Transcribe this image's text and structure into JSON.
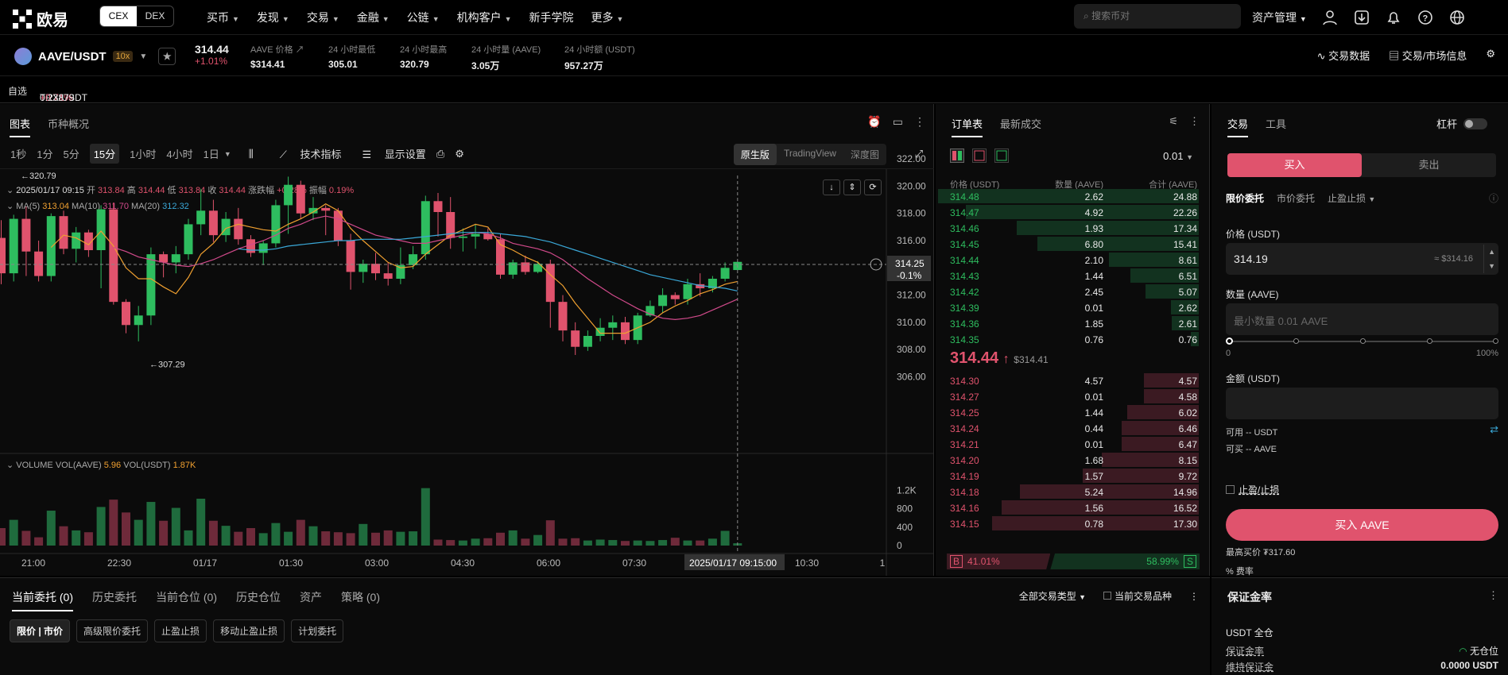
{
  "nav": {
    "logo_text": "欧易",
    "cex": "CEX",
    "dex": "DEX",
    "menu": [
      "买币",
      "发现",
      "交易",
      "金融",
      "公链",
      "机构客户",
      "新手学院",
      "更多"
    ],
    "search_placeholder": "搜索币对",
    "asset_mgmt": "资产管理"
  },
  "ticker": {
    "pair": "AAVE/USDT",
    "leverage": "10x",
    "price": "314.44",
    "change": "+1.01%",
    "stats": [
      {
        "label": "AAVE 价格",
        "value": "$314.41"
      },
      {
        "label": "24 小时最低",
        "value": "305.01"
      },
      {
        "label": "24 小时最高",
        "value": "320.79"
      },
      {
        "label": "24 小时量 (AAVE)",
        "value": "3.05万"
      },
      {
        "label": "24 小时额 (USDT)",
        "value": "957.27万"
      }
    ],
    "trade_data": "交易数据",
    "market_info": "交易/市场信息"
  },
  "favbar": {
    "label": "自选",
    "item": "TRX/USDT 10x",
    "item_change": "+0.71%",
    "item_price": "0.23879"
  },
  "chart_panel": {
    "tabs": [
      "图表",
      "币种概况"
    ],
    "timeframes": [
      "1秒",
      "1分",
      "5分",
      "15分",
      "1小时",
      "4小时",
      "1日"
    ],
    "active_tf": "15分",
    "indicators": "技术指标",
    "display": "显示设置",
    "views": [
      "原生版",
      "TradingView",
      "深度图"
    ],
    "ohlc_line": {
      "time": "2025/01/17 09:15",
      "open_l": "开",
      "open": "313.84",
      "high_l": "高",
      "high": "314.44",
      "low_l": "低",
      "low": "313.84",
      "close_l": "收",
      "close": "314.44",
      "chg_l": "涨跌幅",
      "chg": "+0.28%",
      "amp_l": "振幅",
      "amp": "0.19%"
    },
    "ma_line": {
      "ma5_l": "MA(5)",
      "ma5": "313.04",
      "ma10_l": "MA(10)",
      "ma10": "311.70",
      "ma20_l": "MA(20)",
      "ma20": "312.32"
    },
    "high_marker": "←320.79",
    "low_marker": "←307.29",
    "last_price": "314.25",
    "last_change": "-0.1%",
    "vol_line": {
      "label": "VOLUME",
      "v1_l": "VOL(AAVE)",
      "v1": "5.96",
      "v2_l": "VOL(USDT)",
      "v2": "1.87K"
    },
    "time_axis": [
      "21:00",
      "22:30",
      "01/17",
      "01:30",
      "03:00",
      "04:30",
      "06:00",
      "07:30",
      "2025/01/17 09:15:00",
      "10:30",
      "1"
    ],
    "crosshair_time": "2025/01/17 09:15:00",
    "price_axis": [
      "322.00",
      "320.00",
      "318.00",
      "316.00",
      "314.00",
      "312.00",
      "310.00",
      "308.00",
      "306.00"
    ],
    "vol_axis": [
      "1.2K",
      "800",
      "400",
      "0"
    ]
  },
  "chart_data": {
    "type": "candlestick",
    "ylim": [
      305.5,
      323
    ],
    "candles": [
      [
        316.2,
        317.5,
        312.8,
        313.6
      ],
      [
        313.6,
        317.9,
        313.0,
        317.6
      ],
      [
        317.6,
        318.5,
        313.4,
        315.2
      ],
      [
        315.2,
        316.0,
        313.0,
        313.4
      ],
      [
        313.4,
        318.0,
        313.0,
        317.8
      ],
      [
        317.8,
        318.2,
        315.0,
        315.4
      ],
      [
        315.4,
        317.0,
        314.4,
        316.6
      ],
      [
        316.6,
        316.8,
        314.8,
        315.3
      ],
      [
        315.3,
        318.6,
        312.5,
        318.3
      ],
      [
        318.3,
        318.8,
        311.3,
        311.5
      ],
      [
        311.5,
        311.7,
        309.2,
        309.8
      ],
      [
        309.8,
        311.2,
        308.6,
        310.5
      ],
      [
        310.5,
        315.5,
        309.8,
        315.0
      ],
      [
        315.0,
        315.2,
        313.3,
        314.4
      ],
      [
        314.4,
        315.6,
        313.6,
        315.0
      ],
      [
        315.0,
        317.6,
        314.6,
        317.2
      ],
      [
        317.2,
        319.8,
        316.4,
        318.2
      ],
      [
        318.2,
        319.0,
        315.9,
        316.4
      ],
      [
        316.4,
        318.1,
        315.9,
        317.6
      ],
      [
        317.6,
        318.4,
        315.7,
        316.1
      ],
      [
        316.1,
        316.4,
        314.8,
        315.1
      ],
      [
        315.1,
        316.0,
        314.2,
        315.8
      ],
      [
        315.8,
        319.0,
        315.5,
        318.6
      ],
      [
        318.6,
        320.7,
        316.5,
        320.1
      ],
      [
        320.1,
        320.4,
        317.6,
        318.0
      ],
      [
        318.0,
        319.2,
        317.5,
        318.4
      ],
      [
        318.4,
        318.6,
        316.4,
        318.2
      ],
      [
        318.2,
        318.4,
        315.6,
        316.0
      ],
      [
        316.0,
        316.5,
        312.4,
        313.7
      ],
      [
        313.7,
        314.6,
        312.9,
        314.3
      ],
      [
        314.3,
        315.1,
        313.1,
        313.6
      ],
      [
        313.6,
        314.4,
        312.7,
        313.2
      ],
      [
        313.2,
        315.5,
        312.8,
        314.2
      ],
      [
        314.2,
        315.6,
        313.9,
        315.0
      ],
      [
        315.0,
        319.3,
        314.6,
        318.9
      ],
      [
        318.9,
        319.5,
        316.3,
        318.1
      ],
      [
        318.1,
        319.2,
        315.4,
        316.2
      ],
      [
        316.2,
        316.9,
        315.2,
        316.3
      ],
      [
        316.3,
        317.2,
        315.4,
        316.5
      ],
      [
        316.5,
        316.9,
        316.0,
        316.1
      ],
      [
        316.1,
        316.5,
        313.2,
        313.5
      ],
      [
        313.5,
        314.6,
        313.2,
        314.4
      ],
      [
        314.4,
        314.9,
        313.5,
        313.7
      ],
      [
        313.7,
        314.5,
        313.6,
        314.3
      ],
      [
        314.3,
        314.6,
        309.6,
        311.5
      ],
      [
        311.5,
        312.0,
        308.6,
        309.4
      ],
      [
        309.4,
        310.0,
        307.6,
        308.2
      ],
      [
        308.2,
        309.4,
        307.9,
        309.0
      ],
      [
        309.0,
        310.3,
        308.6,
        309.6
      ],
      [
        309.6,
        310.5,
        308.7,
        310.0
      ],
      [
        310.0,
        310.4,
        308.4,
        308.7
      ],
      [
        308.7,
        310.7,
        308.4,
        310.5
      ],
      [
        310.5,
        311.6,
        310.4,
        311.2
      ],
      [
        311.2,
        312.5,
        310.7,
        312.0
      ],
      [
        312.0,
        312.2,
        311.3,
        311.7
      ],
      [
        311.7,
        313.2,
        311.3,
        312.8
      ],
      [
        312.8,
        313.6,
        311.9,
        312.5
      ],
      [
        312.5,
        313.4,
        312.2,
        313.2
      ],
      [
        313.2,
        314.4,
        313.0,
        314.0
      ],
      [
        313.84,
        314.44,
        313.84,
        314.44
      ]
    ],
    "ma5": [
      null,
      null,
      null,
      null,
      315.5,
      316.4,
      316.2,
      315.7,
      316.7,
      315.6,
      314.0,
      313.2,
      313.2,
      312.6,
      312.1,
      313.3,
      315.0,
      315.8,
      316.9,
      317.2,
      317.0,
      316.8,
      316.7,
      317.2,
      317.6,
      318.1,
      318.7,
      318.2,
      316.9,
      316.0,
      315.2,
      314.4,
      314.0,
      314.1,
      315.0,
      315.7,
      316.4,
      316.8,
      317.2,
      317.0,
      315.7,
      315.3,
      314.8,
      314.4,
      313.5,
      312.7,
      311.4,
      310.3,
      309.2,
      309.2,
      309.2,
      309.6,
      310.0,
      310.7,
      311.2,
      311.6,
      312.1,
      312.4,
      312.8,
      313.0
    ],
    "ma10": [
      null,
      null,
      null,
      null,
      null,
      null,
      null,
      null,
      null,
      315.5,
      315.2,
      314.8,
      314.6,
      314.4,
      314.2,
      314.1,
      314.3,
      314.6,
      315.0,
      315.4,
      315.7,
      316.0,
      316.4,
      316.9,
      317.2,
      317.6,
      317.8,
      317.6,
      317.2,
      316.8,
      316.4,
      316.2,
      316.0,
      315.8,
      315.8,
      316.0,
      316.2,
      316.4,
      316.6,
      316.5,
      316.2,
      315.8,
      315.6,
      315.4,
      315.1,
      314.6,
      313.9,
      313.2,
      312.6,
      312.0,
      311.5,
      311.0,
      310.6,
      310.3,
      310.2,
      310.3,
      310.5,
      310.9,
      311.3,
      311.7
    ],
    "ma20": [
      null,
      null,
      null,
      null,
      null,
      null,
      null,
      null,
      null,
      null,
      null,
      null,
      null,
      null,
      null,
      null,
      null,
      null,
      null,
      315.4,
      315.3,
      315.3,
      315.4,
      315.6,
      315.7,
      315.8,
      315.9,
      316.0,
      316.0,
      316.1,
      316.1,
      316.1,
      316.1,
      316.2,
      316.3,
      316.4,
      316.5,
      316.6,
      316.6,
      316.6,
      316.5,
      316.4,
      316.3,
      316.1,
      315.9,
      315.6,
      315.3,
      315.0,
      314.7,
      314.4,
      314.1,
      313.8,
      313.5,
      313.3,
      313.1,
      312.9,
      312.7,
      312.6,
      312.5,
      312.3
    ],
    "volume": [
      380,
      560,
      320,
      180,
      760,
      420,
      330,
      290,
      840,
      1000,
      720,
      560,
      950,
      540,
      820,
      330,
      1020,
      540,
      430,
      300,
      380,
      270,
      490,
      300,
      560,
      420,
      310,
      290,
      270,
      470,
      280,
      330,
      300,
      310,
      1250,
      130,
      120,
      110,
      150,
      160,
      280,
      330,
      150,
      230,
      550,
      150,
      160,
      110,
      130,
      120,
      100,
      110,
      100,
      120,
      170,
      110,
      110,
      150,
      320,
      50
    ],
    "vol_ylim": [
      0,
      1400
    ]
  },
  "orderbook": {
    "tabs": [
      "订单表",
      "最新成交"
    ],
    "precision": "0.01",
    "headers": [
      "价格 (USDT)",
      "数量 (AAVE)",
      "合计 (AAVE)"
    ],
    "asks": [
      [
        "314.48",
        "2.62",
        "24.88"
      ],
      [
        "314.47",
        "4.92",
        "22.26"
      ],
      [
        "314.46",
        "1.93",
        "17.34"
      ],
      [
        "314.45",
        "6.80",
        "15.41"
      ],
      [
        "314.44",
        "2.10",
        "8.61"
      ],
      [
        "314.43",
        "1.44",
        "6.51"
      ],
      [
        "314.42",
        "2.45",
        "5.07"
      ],
      [
        "314.39",
        "0.01",
        "2.62"
      ],
      [
        "314.36",
        "1.85",
        "2.61"
      ],
      [
        "314.35",
        "0.76",
        "0.76"
      ]
    ],
    "mid_price": "314.44",
    "mid_usd": "$314.41",
    "bids": [
      [
        "314.30",
        "4.57",
        "4.57"
      ],
      [
        "314.27",
        "0.01",
        "4.58"
      ],
      [
        "314.25",
        "1.44",
        "6.02"
      ],
      [
        "314.24",
        "0.44",
        "6.46"
      ],
      [
        "314.21",
        "0.01",
        "6.47"
      ],
      [
        "314.20",
        "1.68",
        "8.15"
      ],
      [
        "314.19",
        "1.57",
        "9.72"
      ],
      [
        "314.18",
        "5.24",
        "14.96"
      ],
      [
        "314.16",
        "1.56",
        "16.52"
      ],
      [
        "314.15",
        "0.78",
        "17.30"
      ]
    ],
    "buy_ratio": "41.01%",
    "sell_ratio": "58.99%",
    "b_label": "B",
    "s_label": "S"
  },
  "trade": {
    "tabs": [
      "交易",
      "工具"
    ],
    "leverage_label": "杠杆",
    "buy": "买入",
    "sell": "卖出",
    "order_tabs": [
      "限价委托",
      "市价委托",
      "止盈止损"
    ],
    "price_label": "价格 (USDT)",
    "price_value": "314.19",
    "price_usd": "≈ $314.16",
    "qty_label": "数量 (AAVE)",
    "qty_placeholder": "最小数量 0.01 AAVE",
    "slider_min": "0",
    "slider_max": "100%",
    "amount_label": "金额 (USDT)",
    "avail": "可用 -- USDT",
    "can_buy": "可买 -- AAVE",
    "tpsl": "止盈/止损",
    "buy_button": "买入 AAVE",
    "max_price": "最高买价 ₮317.60",
    "fee": "% 费率"
  },
  "bottom": {
    "tabs": [
      "当前委托 (0)",
      "历史委托",
      "当前仓位 (0)",
      "历史仓位",
      "资产",
      "策略 (0)"
    ],
    "filter": "全部交易类型",
    "current_only": "当前交易品种",
    "order_types": [
      "限价 | 市价",
      "高级限价委托",
      "止盈止损",
      "移动止盈止损",
      "计划委托"
    ]
  },
  "margin": {
    "title": "保证金率",
    "sub": "USDT 全仓",
    "ratio_label": "保证金率",
    "ratio_value": "无仓位",
    "maint_label": "维持保证金",
    "maint_value": "0.0000 USDT"
  },
  "colors": {
    "up": "#2ebd5f",
    "down": "#e0536d",
    "ma5": "#f0a030",
    "ma10": "#d14a8b",
    "ma20": "#3aa8d8"
  }
}
